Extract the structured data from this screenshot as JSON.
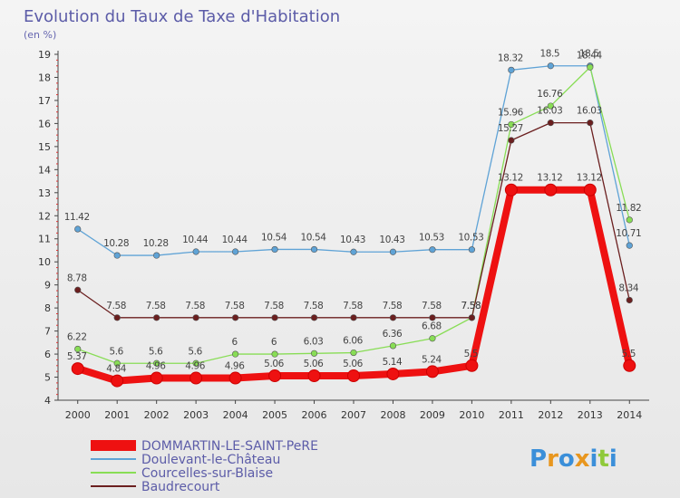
{
  "chart_data": {
    "type": "line",
    "title": "Evolution du Taux de Taxe d'Habitation",
    "subtitle": "(en %)",
    "xlabel": "",
    "ylabel": "",
    "ylim": [
      4,
      19
    ],
    "yticks": [
      "4",
      "5",
      "6",
      "7",
      "8",
      "9",
      "10",
      "11",
      "12",
      "13",
      "14",
      "15",
      "16",
      "17",
      "18",
      "19"
    ],
    "categories": [
      "2000",
      "2001",
      "2002",
      "2003",
      "2004",
      "2005",
      "2006",
      "2007",
      "2008",
      "2009",
      "2010",
      "2011",
      "2012",
      "2013",
      "2014"
    ],
    "grid": false,
    "legend_position": "bottom-left",
    "series": [
      {
        "name": "DOMMARTIN-LE-SAINT-PeRE",
        "color": "#ee1111",
        "values": [
          5.37,
          4.84,
          4.96,
          4.96,
          4.96,
          5.06,
          5.06,
          5.06,
          5.14,
          5.24,
          5.5,
          13.12,
          13.12,
          13.12,
          5.5
        ],
        "labels": [
          "5.37",
          "4.84",
          "4.96",
          "4.96",
          "4.96",
          "5.06",
          "5.06",
          "5.06",
          "5.14",
          "5.24",
          "5.5",
          "13.12",
          "13.12",
          "13.12",
          "5.5"
        ]
      },
      {
        "name": "Doulevant-le-Château",
        "color": "#5fa3d6",
        "values": [
          11.42,
          10.28,
          10.28,
          10.44,
          10.44,
          10.54,
          10.54,
          10.43,
          10.43,
          10.53,
          10.53,
          18.32,
          18.5,
          18.5,
          10.71
        ],
        "labels": [
          "11.42",
          "10.28",
          "10.28",
          "10.44",
          "10.44",
          "10.54",
          "10.54",
          "10.43",
          "10.43",
          "10.53",
          "10.53",
          "18.32",
          "18.5",
          "18.5",
          "10.71"
        ]
      },
      {
        "name": "Courcelles-sur-Blaise",
        "color": "#88dd55",
        "values": [
          6.22,
          5.6,
          5.6,
          5.6,
          6.0,
          6.0,
          6.03,
          6.06,
          6.36,
          6.68,
          7.58,
          15.96,
          16.76,
          18.44,
          11.82
        ],
        "labels": [
          "6.22",
          "5.6",
          "5.6",
          "5.6",
          "6",
          "6",
          "6.03",
          "6.06",
          "6.36",
          "6.68",
          "7.58",
          "15.96",
          "16.76",
          "18.44",
          "11.82"
        ]
      },
      {
        "name": "Baudrecourt",
        "color": "#6b1f1f",
        "values": [
          8.78,
          7.58,
          7.58,
          7.58,
          7.58,
          7.58,
          7.58,
          7.58,
          7.58,
          7.58,
          7.58,
          15.27,
          16.03,
          16.03,
          8.34
        ],
        "labels": [
          "8.78",
          "7.58",
          "7.58",
          "7.58",
          "7.58",
          "7.58",
          "7.58",
          "7.58",
          "7.58",
          "7.58",
          "7.58",
          "15.27",
          "16.03",
          "16.03",
          "8.34"
        ]
      }
    ]
  },
  "brand": {
    "text": "Proxiti",
    "colors": [
      "#3b8fd9",
      "#e8961e",
      "#3b8fd9",
      "#e8961e",
      "#3b8fd9",
      "#8fc93a",
      "#3b8fd9"
    ]
  }
}
